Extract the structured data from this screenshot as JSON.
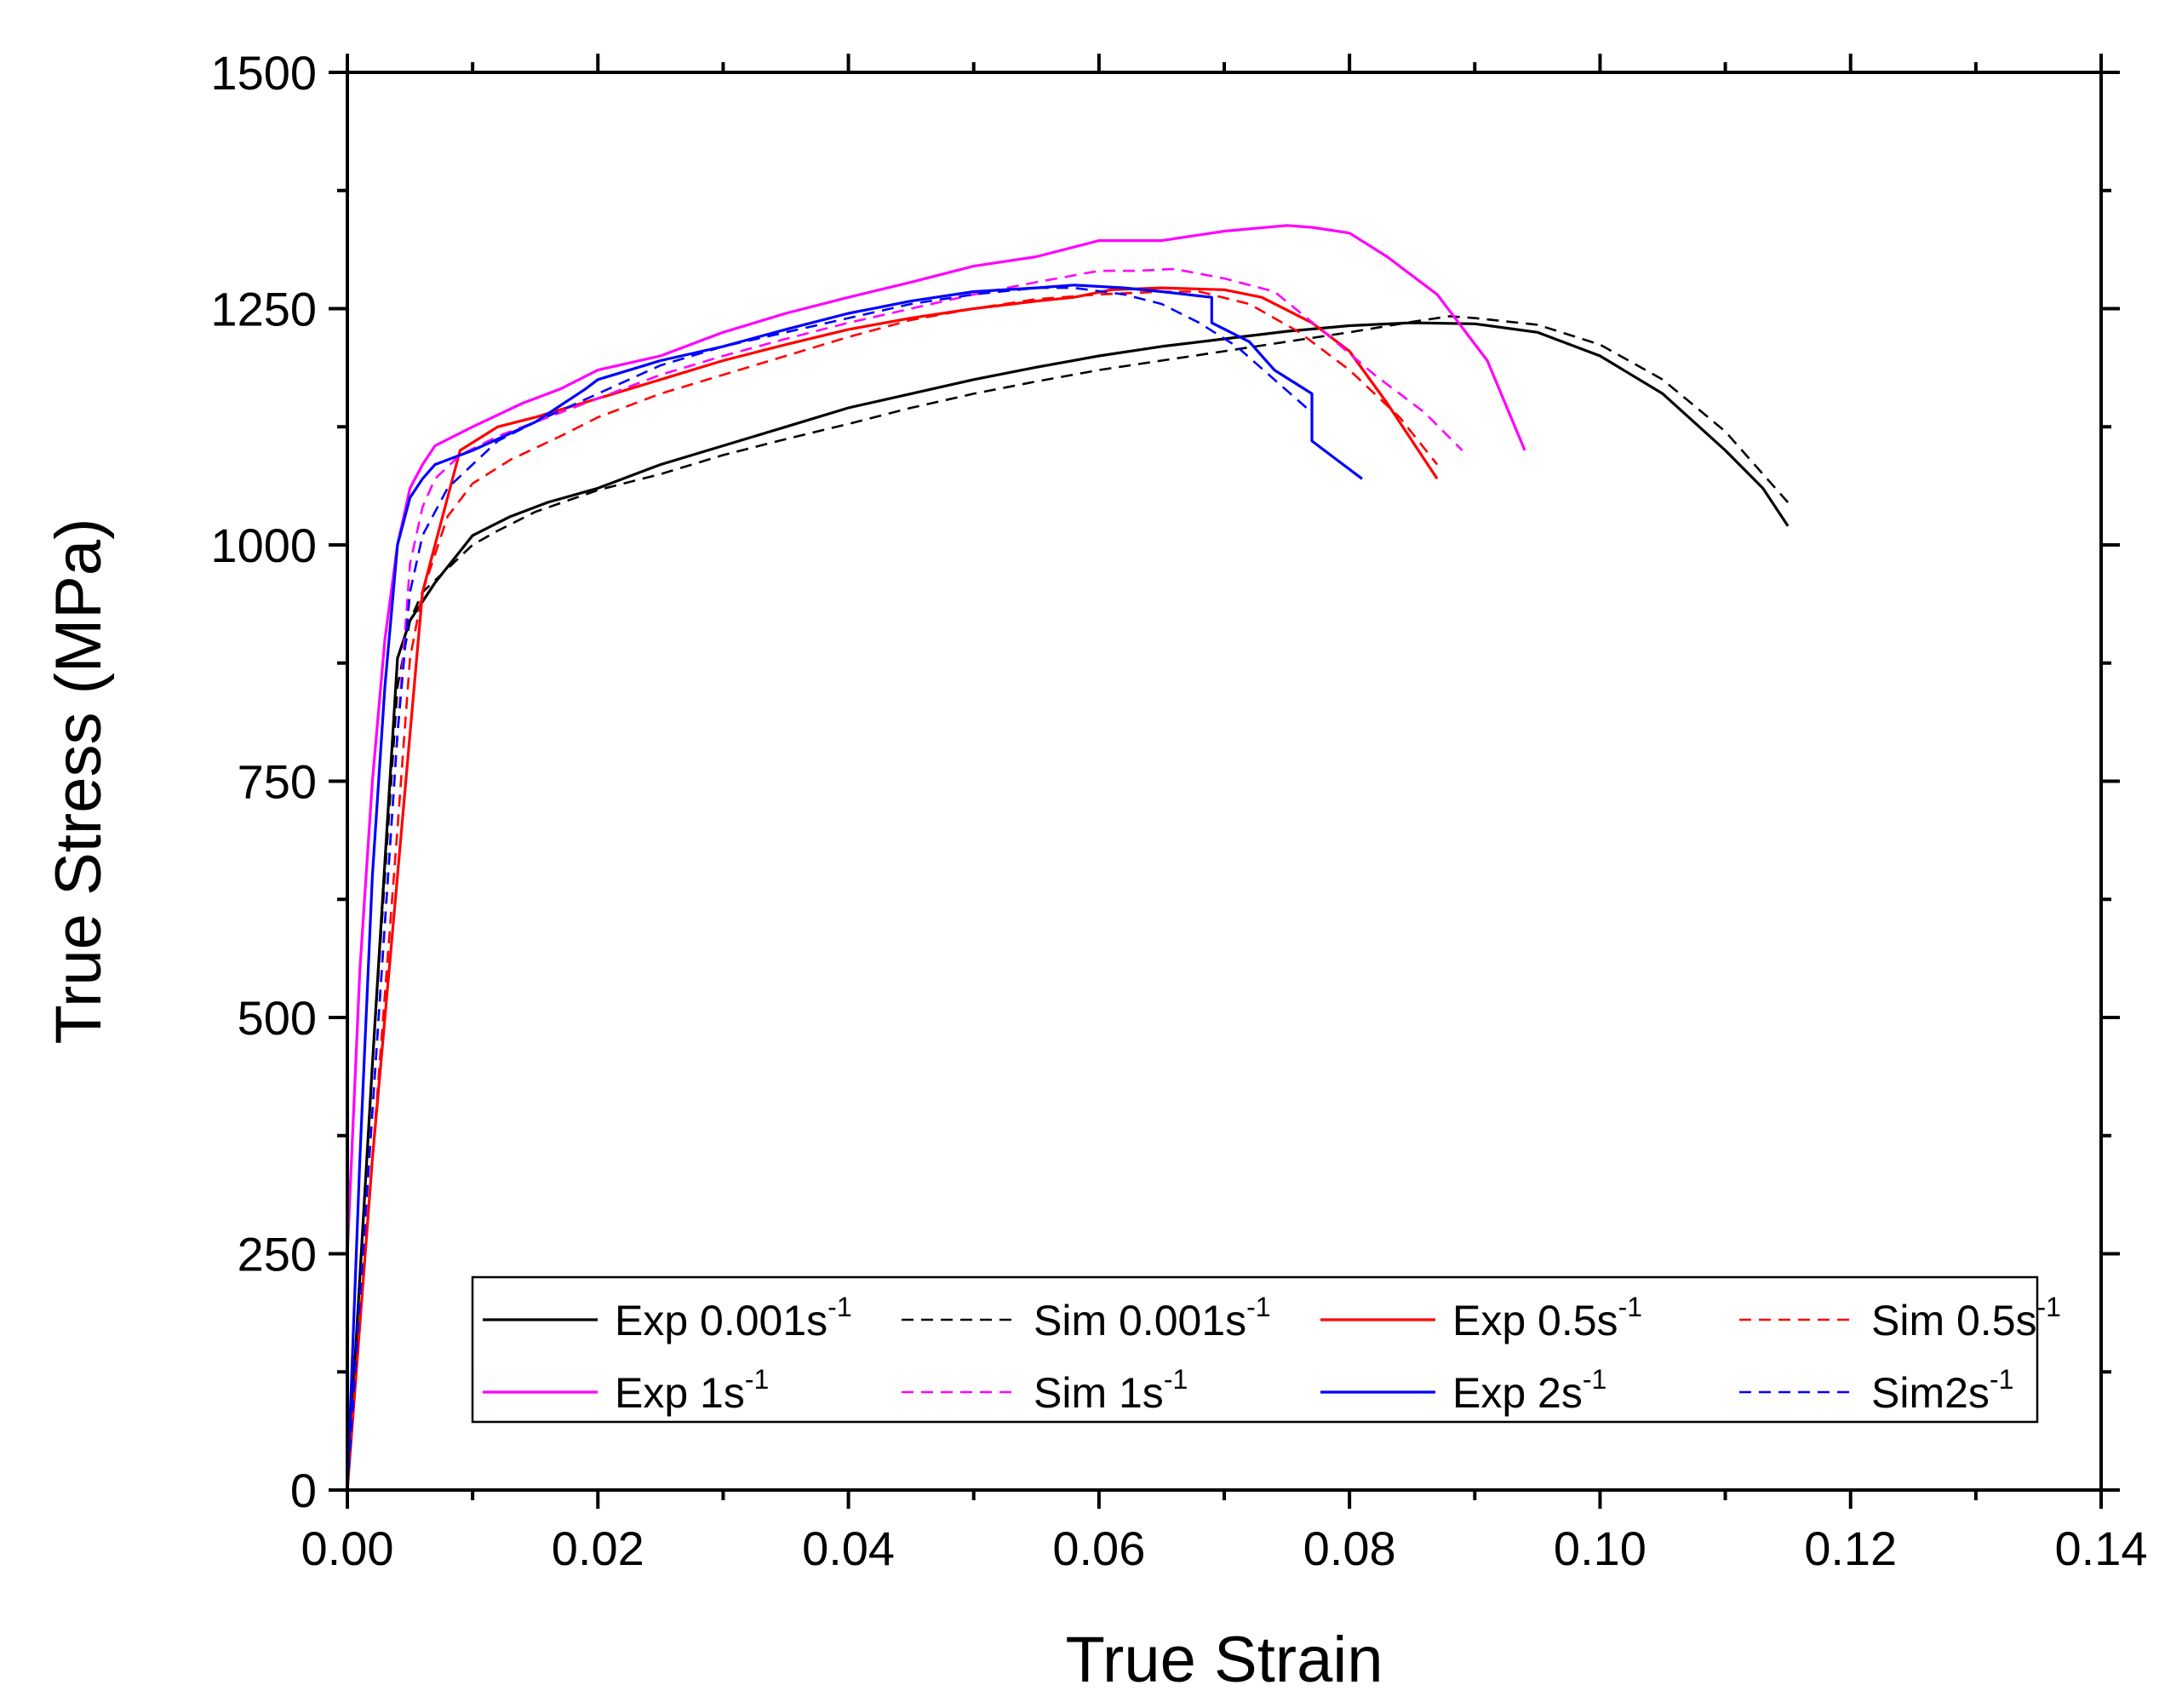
{
  "chart_data": {
    "type": "line",
    "title": "",
    "xlabel": "True Strain",
    "ylabel": "True Stress (MPa)",
    "xlim": [
      0,
      0.14
    ],
    "ylim": [
      0,
      1500
    ],
    "xticks": [
      0,
      0.02,
      0.04,
      0.06,
      0.08,
      0.1,
      0.12,
      0.14
    ],
    "xtick_labels": [
      "0.00",
      "0.02",
      "0.04",
      "0.06",
      "0.08",
      "0.10",
      "0.12",
      "0.14"
    ],
    "yticks": [
      0,
      250,
      500,
      750,
      1000,
      1250,
      1500
    ],
    "ytick_labels": [
      "0",
      "250",
      "500",
      "750",
      "1000",
      "1250",
      "1500"
    ],
    "grid": false,
    "legend_position": "bottom-right",
    "series": [
      {
        "name": "Exp 0.001s-1",
        "label": "Exp 0.001s",
        "sup": "-1",
        "color": "#000000",
        "dash": "solid",
        "x": [
          0,
          0.002,
          0.004,
          0.005,
          0.007,
          0.01,
          0.013,
          0.016,
          0.02,
          0.025,
          0.03,
          0.035,
          0.04,
          0.045,
          0.05,
          0.055,
          0.06,
          0.065,
          0.07,
          0.075,
          0.08,
          0.085,
          0.09,
          0.095,
          0.1,
          0.105,
          0.11,
          0.113,
          0.115
        ],
        "y": [
          0,
          450,
          880,
          920,
          960,
          1010,
          1030,
          1045,
          1060,
          1085,
          1105,
          1125,
          1145,
          1160,
          1175,
          1188,
          1200,
          1210,
          1218,
          1226,
          1232,
          1235,
          1234,
          1225,
          1200,
          1160,
          1100,
          1060,
          1020
        ]
      },
      {
        "name": "Sim 0.001s-1",
        "label": "Sim 0.001s",
        "sup": "-1",
        "color": "#000000",
        "dash": "dashed",
        "x": [
          0,
          0.002,
          0.004,
          0.005,
          0.006,
          0.008,
          0.01,
          0.012,
          0.015,
          0.02,
          0.025,
          0.03,
          0.035,
          0.04,
          0.045,
          0.05,
          0.055,
          0.06,
          0.065,
          0.07,
          0.075,
          0.08,
          0.085,
          0.088,
          0.09,
          0.095,
          0.1,
          0.105,
          0.11,
          0.115
        ],
        "y": [
          0,
          450,
          850,
          920,
          950,
          975,
          1000,
          1015,
          1035,
          1058,
          1075,
          1095,
          1112,
          1128,
          1145,
          1160,
          1173,
          1185,
          1195,
          1205,
          1215,
          1225,
          1236,
          1242,
          1240,
          1233,
          1212,
          1175,
          1120,
          1045
        ]
      },
      {
        "name": "Exp 0.5s-1",
        "label": "Exp 0.5s",
        "sup": "-1",
        "color": "#ff0000",
        "dash": "solid",
        "x": [
          0,
          0.002,
          0.004,
          0.006,
          0.007,
          0.008,
          0.009,
          0.012,
          0.015,
          0.02,
          0.025,
          0.03,
          0.035,
          0.04,
          0.045,
          0.05,
          0.055,
          0.058,
          0.061,
          0.065,
          0.07,
          0.073,
          0.077,
          0.08,
          0.083,
          0.085,
          0.087
        ],
        "y": [
          0,
          350,
          650,
          950,
          1000,
          1050,
          1100,
          1125,
          1135,
          1155,
          1175,
          1195,
          1212,
          1228,
          1240,
          1250,
          1258,
          1262,
          1270,
          1272,
          1270,
          1262,
          1235,
          1205,
          1150,
          1110,
          1070
        ]
      },
      {
        "name": "Sim 0.5s-1",
        "label": "Sim 0.5s",
        "sup": "-1",
        "color": "#ff0000",
        "dash": "dashed",
        "x": [
          0,
          0.002,
          0.004,
          0.005,
          0.006,
          0.008,
          0.01,
          0.013,
          0.017,
          0.02,
          0.025,
          0.03,
          0.035,
          0.04,
          0.045,
          0.05,
          0.055,
          0.06,
          0.065,
          0.068,
          0.072,
          0.076,
          0.08,
          0.084,
          0.087
        ],
        "y": [
          0,
          350,
          700,
          880,
          950,
          1030,
          1065,
          1090,
          1115,
          1135,
          1160,
          1180,
          1200,
          1220,
          1238,
          1250,
          1260,
          1265,
          1268,
          1268,
          1255,
          1225,
          1185,
          1135,
          1085
        ]
      },
      {
        "name": "Exp 1s-1",
        "label": "Exp 1s",
        "sup": "-1",
        "color": "#ff00ff",
        "dash": "solid",
        "x": [
          0,
          0.001,
          0.002,
          0.003,
          0.004,
          0.005,
          0.006,
          0.007,
          0.01,
          0.014,
          0.017,
          0.02,
          0.025,
          0.03,
          0.035,
          0.04,
          0.045,
          0.05,
          0.055,
          0.06,
          0.065,
          0.07,
          0.075,
          0.077,
          0.08,
          0.083,
          0.087,
          0.091,
          0.094
        ],
        "y": [
          250,
          550,
          750,
          900,
          1000,
          1060,
          1085,
          1105,
          1125,
          1150,
          1165,
          1185,
          1200,
          1225,
          1245,
          1262,
          1278,
          1295,
          1305,
          1322,
          1322,
          1332,
          1338,
          1336,
          1330,
          1305,
          1265,
          1195,
          1100
        ]
      },
      {
        "name": "Sim 1s-1",
        "label": "Sim 1s",
        "sup": "-1",
        "color": "#ff00ff",
        "dash": "dashed",
        "x": [
          0,
          0.002,
          0.004,
          0.005,
          0.006,
          0.007,
          0.009,
          0.012,
          0.015,
          0.02,
          0.025,
          0.03,
          0.035,
          0.04,
          0.045,
          0.05,
          0.055,
          0.06,
          0.063,
          0.066,
          0.07,
          0.074,
          0.078,
          0.082,
          0.086,
          0.089
        ],
        "y": [
          0,
          400,
          800,
          980,
          1040,
          1070,
          1095,
          1115,
          1130,
          1155,
          1180,
          1200,
          1218,
          1235,
          1250,
          1265,
          1278,
          1290,
          1290,
          1292,
          1282,
          1268,
          1225,
          1180,
          1140,
          1100
        ]
      },
      {
        "name": "Exp 2s-1",
        "label": "Exp 2s",
        "sup": "-1",
        "color": "#0000ff",
        "dash": "solid",
        "x": [
          0,
          0.001,
          0.002,
          0.003,
          0.004,
          0.005,
          0.006,
          0.007,
          0.01,
          0.015,
          0.019,
          0.02,
          0.025,
          0.03,
          0.035,
          0.04,
          0.045,
          0.05,
          0.055,
          0.058,
          0.062,
          0.065,
          0.069,
          0.069,
          0.072,
          0.074,
          0.077,
          0.077,
          0.079,
          0.081
        ],
        "y": [
          0,
          350,
          650,
          850,
          1000,
          1050,
          1070,
          1085,
          1100,
          1130,
          1165,
          1175,
          1195,
          1210,
          1228,
          1245,
          1258,
          1268,
          1272,
          1275,
          1272,
          1268,
          1262,
          1235,
          1215,
          1185,
          1160,
          1110,
          1090,
          1070
        ]
      },
      {
        "name": "Sim2s-1",
        "label": "Sim2s",
        "sup": "-1",
        "color": "#0000ff",
        "dash": "dashed",
        "x": [
          0,
          0.002,
          0.004,
          0.005,
          0.006,
          0.008,
          0.01,
          0.012,
          0.015,
          0.02,
          0.025,
          0.03,
          0.035,
          0.04,
          0.045,
          0.05,
          0.055,
          0.058,
          0.062,
          0.065,
          0.068,
          0.071,
          0.074,
          0.077
        ],
        "y": [
          0,
          400,
          800,
          950,
          1010,
          1060,
          1085,
          1110,
          1130,
          1160,
          1190,
          1210,
          1225,
          1240,
          1255,
          1265,
          1272,
          1272,
          1265,
          1255,
          1235,
          1210,
          1175,
          1140
        ]
      }
    ]
  }
}
